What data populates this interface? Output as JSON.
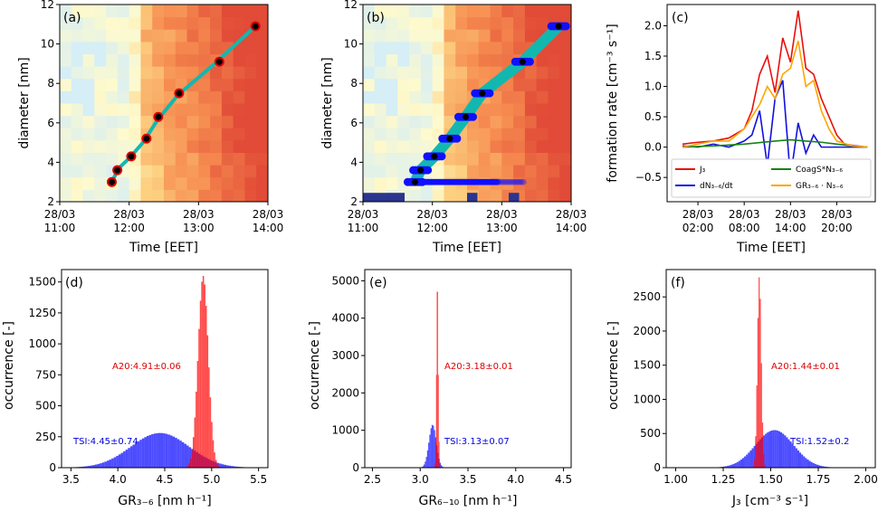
{
  "chart_data": [
    {
      "panel": "(a)",
      "type": "heatmap",
      "xlabel": "Time [EET]",
      "ylabel": "diameter [nm]",
      "xticks": [
        [
          "28/03",
          "11:00"
        ],
        [
          "28/03",
          "12:00"
        ],
        [
          "28/03",
          "13:00"
        ],
        [
          "28/03",
          "14:00"
        ]
      ],
      "xlim": [
        11.0,
        14.0
      ],
      "ylim": [
        2,
        12
      ],
      "yticks": [
        "2",
        "4",
        "6",
        "8",
        "10",
        "12"
      ],
      "fit_points": [
        [
          11.75,
          3.0
        ],
        [
          11.83,
          3.6
        ],
        [
          12.03,
          4.3
        ],
        [
          12.25,
          5.2
        ],
        [
          12.42,
          6.3
        ],
        [
          12.72,
          7.5
        ],
        [
          13.3,
          9.1
        ],
        [
          13.82,
          10.9
        ]
      ],
      "fit_line": [
        [
          11.75,
          3.0
        ],
        [
          11.85,
          3.7
        ],
        [
          12.0,
          4.2
        ],
        [
          12.2,
          5.0
        ],
        [
          12.4,
          6.1
        ],
        [
          12.7,
          7.4
        ],
        [
          13.2,
          8.9
        ],
        [
          13.82,
          10.9
        ]
      ]
    },
    {
      "panel": "(b)",
      "type": "heatmap",
      "xlabel": "Time [EET]",
      "ylabel": "diameter [nm]",
      "xticks": [
        [
          "28/03",
          "11:00"
        ],
        [
          "28/03",
          "12:00"
        ],
        [
          "28/03",
          "13:00"
        ],
        [
          "28/03",
          "14:00"
        ]
      ],
      "xlim": [
        11.0,
        14.0
      ],
      "ylim": [
        2,
        12
      ],
      "yticks": [
        "2",
        "4",
        "6",
        "8",
        "10",
        "12"
      ],
      "fit_points": [
        [
          11.75,
          3.0
        ],
        [
          11.83,
          3.6
        ],
        [
          12.03,
          4.3
        ],
        [
          12.25,
          5.2
        ],
        [
          12.48,
          6.3
        ],
        [
          12.72,
          7.5
        ],
        [
          13.3,
          9.1
        ],
        [
          13.82,
          10.9
        ]
      ]
    },
    {
      "panel": "(c)",
      "type": "line",
      "xlabel": "Time [EET]",
      "ylabel": "formation rate [cm⁻³ s⁻¹]",
      "xticks": [
        [
          "28/03",
          "02:00"
        ],
        [
          "28/03",
          "08:00"
        ],
        [
          "28/03",
          "14:00"
        ],
        [
          "28/03",
          "20:00"
        ]
      ],
      "yticks": [
        "−0.5",
        "0.0",
        "0.5",
        "1.0",
        "1.5",
        "2.0"
      ],
      "ylim": [
        -0.9,
        2.35
      ],
      "xlim": [
        -2,
        25
      ],
      "legend": [
        "J₃",
        "dN₃₋₆/dt",
        "CoagS*N₃₋₆",
        "GR₃₋₆ · N₃₋₆"
      ],
      "series": [
        {
          "name": "J₃",
          "color": "#e8100c",
          "values": [
            [
              0,
              0.05
            ],
            [
              2,
              0.08
            ],
            [
              4,
              0.1
            ],
            [
              6,
              0.15
            ],
            [
              8,
              0.3
            ],
            [
              9,
              0.6
            ],
            [
              10,
              1.2
            ],
            [
              11,
              1.5
            ],
            [
              12,
              0.9
            ],
            [
              13,
              1.8
            ],
            [
              14,
              1.4
            ],
            [
              15,
              2.25
            ],
            [
              16,
              1.3
            ],
            [
              17,
              1.2
            ],
            [
              18,
              0.8
            ],
            [
              19,
              0.5
            ],
            [
              20,
              0.2
            ],
            [
              21,
              0.05
            ],
            [
              22,
              0.03
            ],
            [
              24,
              0.0
            ]
          ]
        },
        {
          "name": "dN₃₋₆/dt",
          "color": "#1010e0",
          "values": [
            [
              0,
              0.02
            ],
            [
              2,
              0.0
            ],
            [
              4,
              0.05
            ],
            [
              6,
              0.0
            ],
            [
              8,
              0.1
            ],
            [
              9,
              0.2
            ],
            [
              10,
              0.6
            ],
            [
              11,
              -0.3
            ],
            [
              12,
              0.8
            ],
            [
              13,
              1.1
            ],
            [
              14,
              -0.5
            ],
            [
              15,
              0.4
            ],
            [
              16,
              -0.1
            ],
            [
              17,
              0.2
            ],
            [
              18,
              0.0
            ],
            [
              20,
              0.0
            ],
            [
              22,
              0.0
            ],
            [
              24,
              0.0
            ]
          ]
        },
        {
          "name": "CoagS*N₃₋₆",
          "color": "#188018",
          "values": [
            [
              0,
              0.0
            ],
            [
              4,
              0.02
            ],
            [
              8,
              0.05
            ],
            [
              12,
              0.1
            ],
            [
              14,
              0.12
            ],
            [
              16,
              0.1
            ],
            [
              18,
              0.08
            ],
            [
              20,
              0.05
            ],
            [
              22,
              0.02
            ],
            [
              24,
              0.0
            ]
          ]
        },
        {
          "name": "GR₃₋₆ · N₃₋₆",
          "color": "#ffa500",
          "values": [
            [
              0,
              0.0
            ],
            [
              2,
              0.05
            ],
            [
              4,
              0.1
            ],
            [
              6,
              0.1
            ],
            [
              8,
              0.3
            ],
            [
              9,
              0.5
            ],
            [
              10,
              0.7
            ],
            [
              11,
              1.0
            ],
            [
              12,
              0.8
            ],
            [
              13,
              1.2
            ],
            [
              14,
              1.3
            ],
            [
              15,
              1.75
            ],
            [
              16,
              1.0
            ],
            [
              17,
              1.1
            ],
            [
              18,
              0.6
            ],
            [
              19,
              0.3
            ],
            [
              20,
              0.1
            ],
            [
              22,
              0.02
            ],
            [
              24,
              0.0
            ]
          ]
        }
      ]
    },
    {
      "panel": "(d)",
      "type": "bar",
      "xlabel": "GR₃₋₆ [nm h⁻¹]",
      "ylabel": "occurrence [-]",
      "xlim": [
        3.4,
        5.6
      ],
      "ylim": [
        0,
        1600
      ],
      "xticks": [
        "3.5",
        "4.0",
        "4.5",
        "5.0",
        "5.5"
      ],
      "yticks": [
        "0",
        "250",
        "500",
        "750",
        "1000",
        "1250",
        "1500"
      ],
      "annotations": [
        {
          "text": "A20:4.91±0.06",
          "color": "#dd0000"
        },
        {
          "text": "TSI:4.45±0.74",
          "color": "#0000dd"
        }
      ],
      "series": [
        {
          "name": "A20",
          "color": "#ff0000",
          "mean": 4.91,
          "sd": 0.06,
          "peak": 1550
        },
        {
          "name": "TSI",
          "color": "#0000ff",
          "mean": 4.45,
          "sd": 0.74,
          "peak": 280
        }
      ]
    },
    {
      "panel": "(e)",
      "type": "bar",
      "xlabel": "GR₆₋₁₀ [nm h⁻¹]",
      "ylabel": "occurrence [-]",
      "xlim": [
        2.42,
        4.58
      ],
      "ylim": [
        0,
        5300
      ],
      "xticks": [
        "2.5",
        "3.0",
        "3.5",
        "4.0",
        "4.5"
      ],
      "yticks": [
        "0",
        "1000",
        "2000",
        "3000",
        "4000",
        "5000"
      ],
      "annotations": [
        {
          "text": "A20:3.18±0.01",
          "color": "#dd0000"
        },
        {
          "text": "TSI:3.13±0.07",
          "color": "#0000dd"
        }
      ],
      "series": [
        {
          "name": "A20",
          "color": "#ff0000",
          "mean": 3.18,
          "sd": 0.01,
          "peak": 5100
        },
        {
          "name": "TSI",
          "color": "#0000ff",
          "mean": 3.13,
          "sd": 0.07,
          "peak": 1150
        }
      ]
    },
    {
      "panel": "(f)",
      "type": "bar",
      "xlabel": "J₃ [cm⁻³ s⁻¹]",
      "ylabel": "occurrence [-]",
      "xlim": [
        0.95,
        2.05
      ],
      "ylim": [
        0,
        2900
      ],
      "xticks": [
        "1.00",
        "1.25",
        "1.50",
        "1.75",
        "2.00"
      ],
      "yticks": [
        "0",
        "500",
        "1000",
        "1500",
        "2000",
        "2500"
      ],
      "annotations": [
        {
          "text": "A20:1.44±0.01",
          "color": "#dd0000"
        },
        {
          "text": "TSI:1.52±0.2",
          "color": "#0000dd"
        }
      ],
      "series": [
        {
          "name": "A20",
          "color": "#ff0000",
          "mean": 1.44,
          "sd": 0.01,
          "peak": 2800
        },
        {
          "name": "TSI",
          "color": "#0000ff",
          "mean": 1.52,
          "sd": 0.2,
          "peak": 550
        }
      ]
    }
  ]
}
